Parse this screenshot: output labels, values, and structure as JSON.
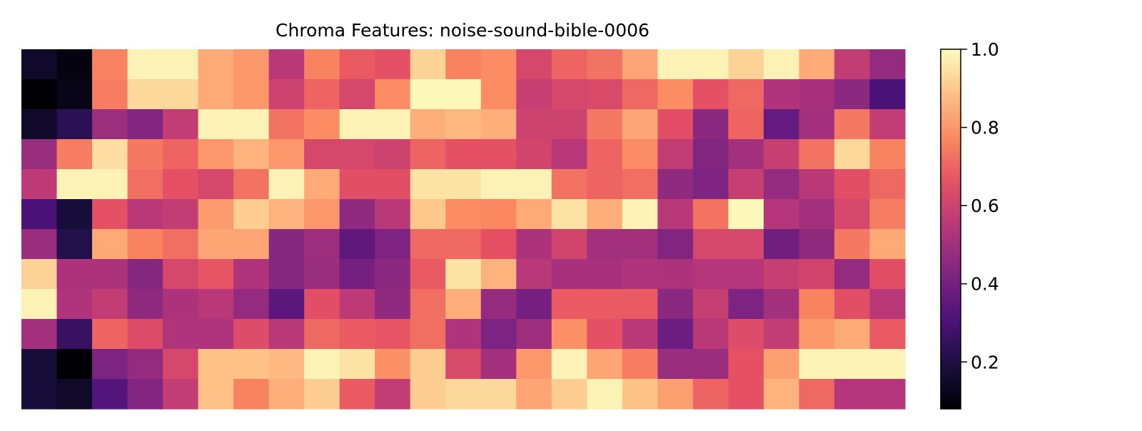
{
  "chart_data": {
    "type": "heatmap",
    "title": "Chroma Features: noise-sound-bible-0006",
    "colormap": "magma",
    "value_range": [
      0.08,
      1.0
    ],
    "colorbar": {
      "ticks": [
        0.2,
        0.4,
        0.6,
        0.8,
        1.0
      ],
      "tick_labels": [
        "0.2",
        "0.4",
        "0.6",
        "0.8",
        "1.0"
      ]
    },
    "axes_visible": false,
    "grid": false,
    "rows": 12,
    "columns": 25,
    "values": [
      [
        0.15,
        0.1,
        0.76,
        0.98,
        0.98,
        0.84,
        0.8,
        0.55,
        0.76,
        0.68,
        0.66,
        0.92,
        0.76,
        0.78,
        0.62,
        0.7,
        0.73,
        0.83,
        0.98,
        0.98,
        0.92,
        0.98,
        0.84,
        0.57,
        0.47
      ],
      [
        0.08,
        0.12,
        0.75,
        0.93,
        0.93,
        0.84,
        0.8,
        0.6,
        0.7,
        0.62,
        0.78,
        0.99,
        0.99,
        0.78,
        0.58,
        0.62,
        0.63,
        0.71,
        0.78,
        0.66,
        0.71,
        0.53,
        0.51,
        0.45,
        0.3
      ],
      [
        0.15,
        0.23,
        0.49,
        0.43,
        0.57,
        0.98,
        0.98,
        0.73,
        0.78,
        0.98,
        0.98,
        0.85,
        0.87,
        0.85,
        0.6,
        0.6,
        0.74,
        0.83,
        0.65,
        0.45,
        0.7,
        0.36,
        0.5,
        0.74,
        0.57
      ],
      [
        0.48,
        0.75,
        0.94,
        0.74,
        0.7,
        0.8,
        0.86,
        0.8,
        0.62,
        0.62,
        0.6,
        0.7,
        0.66,
        0.66,
        0.61,
        0.55,
        0.7,
        0.78,
        0.57,
        0.43,
        0.5,
        0.58,
        0.73,
        0.93,
        0.76
      ],
      [
        0.56,
        0.98,
        0.98,
        0.72,
        0.66,
        0.62,
        0.73,
        0.98,
        0.84,
        0.65,
        0.65,
        0.95,
        0.95,
        0.98,
        0.98,
        0.73,
        0.7,
        0.72,
        0.46,
        0.42,
        0.58,
        0.47,
        0.55,
        0.65,
        0.71
      ],
      [
        0.3,
        0.18,
        0.66,
        0.55,
        0.57,
        0.81,
        0.91,
        0.86,
        0.8,
        0.46,
        0.55,
        0.9,
        0.78,
        0.77,
        0.84,
        0.95,
        0.85,
        0.98,
        0.55,
        0.73,
        0.99,
        0.54,
        0.5,
        0.62,
        0.75
      ],
      [
        0.48,
        0.21,
        0.84,
        0.76,
        0.72,
        0.83,
        0.83,
        0.44,
        0.49,
        0.35,
        0.42,
        0.71,
        0.71,
        0.66,
        0.52,
        0.61,
        0.5,
        0.5,
        0.43,
        0.62,
        0.62,
        0.39,
        0.46,
        0.74,
        0.84
      ],
      [
        0.92,
        0.52,
        0.52,
        0.44,
        0.62,
        0.67,
        0.53,
        0.44,
        0.48,
        0.4,
        0.45,
        0.68,
        0.95,
        0.86,
        0.55,
        0.51,
        0.51,
        0.53,
        0.52,
        0.54,
        0.54,
        0.58,
        0.61,
        0.47,
        0.65
      ],
      [
        0.98,
        0.53,
        0.57,
        0.46,
        0.52,
        0.55,
        0.47,
        0.34,
        0.65,
        0.56,
        0.46,
        0.72,
        0.85,
        0.47,
        0.4,
        0.68,
        0.68,
        0.68,
        0.45,
        0.58,
        0.42,
        0.5,
        0.76,
        0.65,
        0.55
      ],
      [
        0.5,
        0.26,
        0.7,
        0.64,
        0.53,
        0.53,
        0.64,
        0.55,
        0.71,
        0.68,
        0.67,
        0.72,
        0.53,
        0.42,
        0.49,
        0.79,
        0.66,
        0.55,
        0.38,
        0.55,
        0.64,
        0.57,
        0.8,
        0.84,
        0.68
      ],
      [
        0.18,
        0.08,
        0.42,
        0.47,
        0.62,
        0.89,
        0.89,
        0.87,
        0.98,
        0.95,
        0.79,
        0.91,
        0.63,
        0.5,
        0.8,
        0.98,
        0.83,
        0.75,
        0.48,
        0.48,
        0.66,
        0.82,
        0.98,
        0.98,
        0.98
      ],
      [
        0.18,
        0.15,
        0.32,
        0.43,
        0.57,
        0.89,
        0.76,
        0.85,
        0.91,
        0.68,
        0.57,
        0.91,
        0.93,
        0.93,
        0.83,
        0.91,
        0.98,
        0.89,
        0.82,
        0.7,
        0.66,
        0.86,
        0.71,
        0.54,
        0.54
      ]
    ]
  }
}
